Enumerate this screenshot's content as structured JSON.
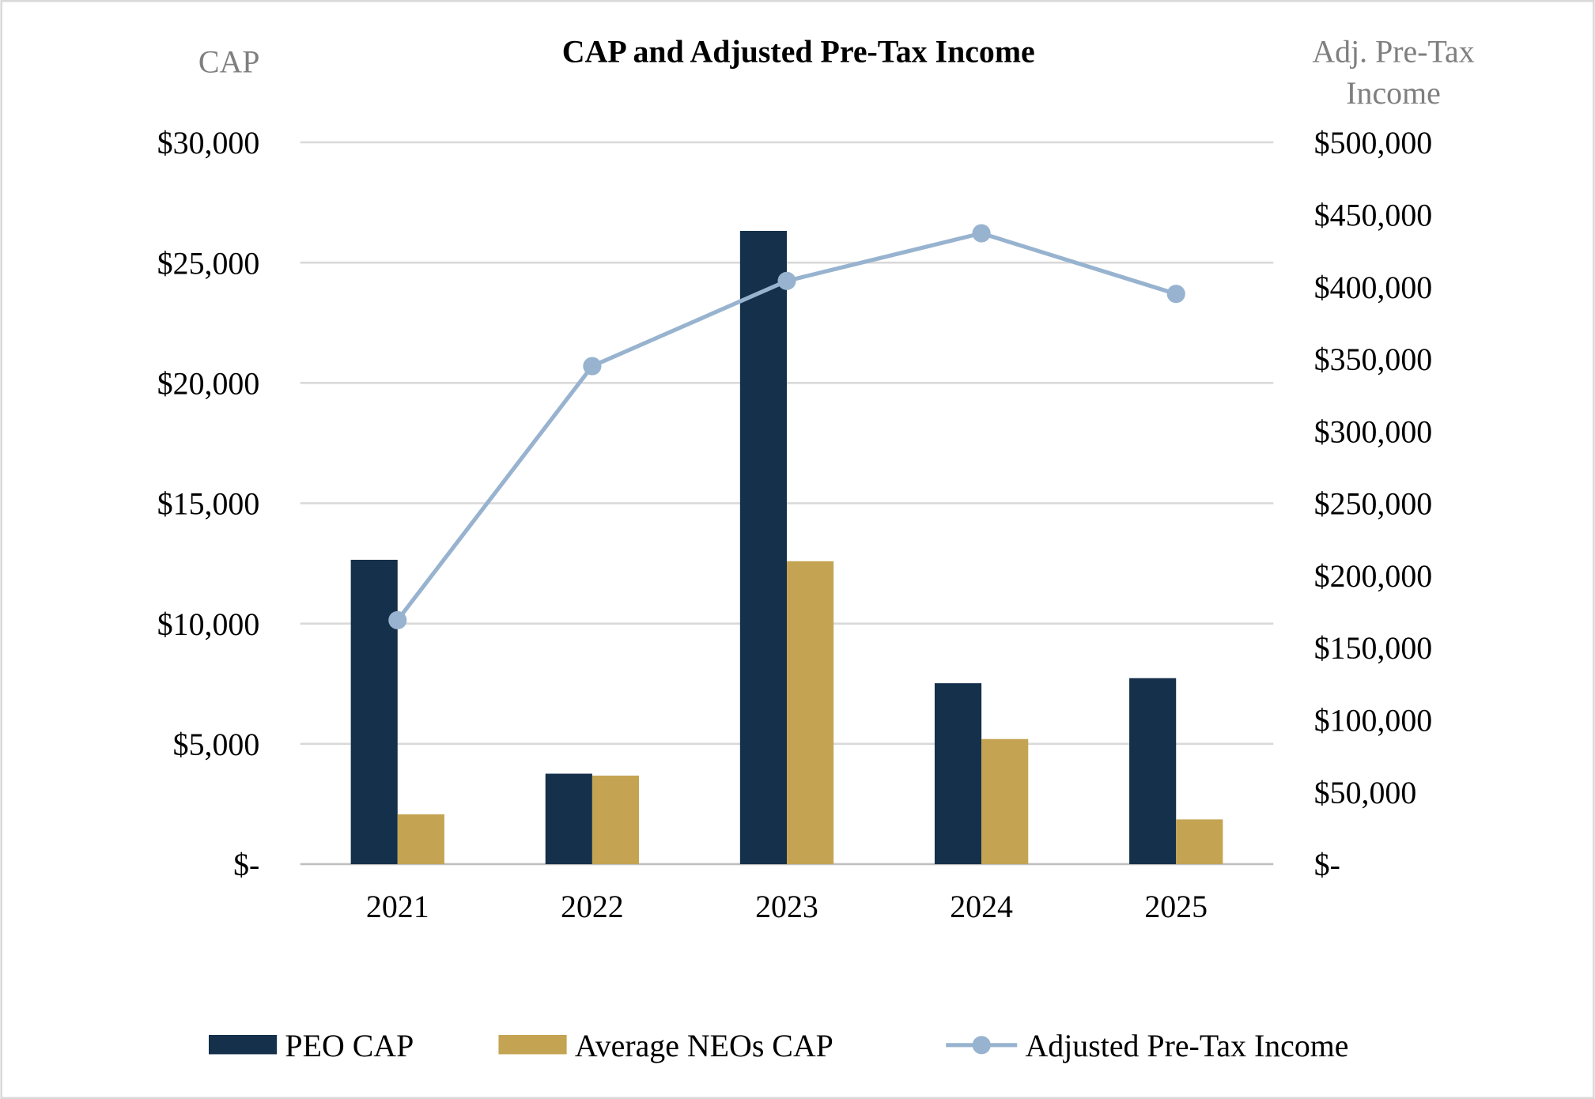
{
  "chart_data": {
    "type": "bar+line",
    "title": "CAP and Adjusted Pre-Tax Income",
    "ylabel_left": "CAP",
    "ylabel_right": [
      "Adj. Pre-Tax",
      "Income"
    ],
    "categories": [
      "2021",
      "2022",
      "2023",
      "2024",
      "2025"
    ],
    "ylim_left": [
      0,
      30000
    ],
    "ylim_right": [
      0,
      500000
    ],
    "left_ticks": [
      {
        "value": 0,
        "label": "$-"
      },
      {
        "value": 5000,
        "label": "$5,000"
      },
      {
        "value": 10000,
        "label": "$10,000"
      },
      {
        "value": 15000,
        "label": "$15,000"
      },
      {
        "value": 20000,
        "label": "$20,000"
      },
      {
        "value": 25000,
        "label": "$25,000"
      },
      {
        "value": 30000,
        "label": "$30,000"
      }
    ],
    "right_ticks": [
      {
        "value": 0,
        "label": "$-"
      },
      {
        "value": 50000,
        "label": "$50,000"
      },
      {
        "value": 100000,
        "label": "$100,000"
      },
      {
        "value": 150000,
        "label": "$150,000"
      },
      {
        "value": 200000,
        "label": "$200,000"
      },
      {
        "value": 250000,
        "label": "$250,000"
      },
      {
        "value": 300000,
        "label": "$300,000"
      },
      {
        "value": 350000,
        "label": "$350,000"
      },
      {
        "value": 400000,
        "label": "$400,000"
      },
      {
        "value": 450000,
        "label": "$450,000"
      },
      {
        "value": 500000,
        "label": "$500,000"
      }
    ],
    "grid": true,
    "legend_position": "bottom",
    "series": [
      {
        "name": "PEO CAP",
        "type": "bar",
        "axis": "left",
        "color": "#14304a",
        "values": [
          12650,
          3760,
          26320,
          7520,
          7730
        ]
      },
      {
        "name": "Average NEOs CAP",
        "type": "bar",
        "axis": "left",
        "color": "#c4a452",
        "values": [
          2070,
          3680,
          12590,
          5200,
          1860
        ]
      },
      {
        "name": "Adjusted Pre-Tax Income",
        "type": "line",
        "axis": "right",
        "color": "#97b3cf",
        "values": [
          169000,
          345000,
          404000,
          437000,
          395000
        ]
      }
    ]
  }
}
